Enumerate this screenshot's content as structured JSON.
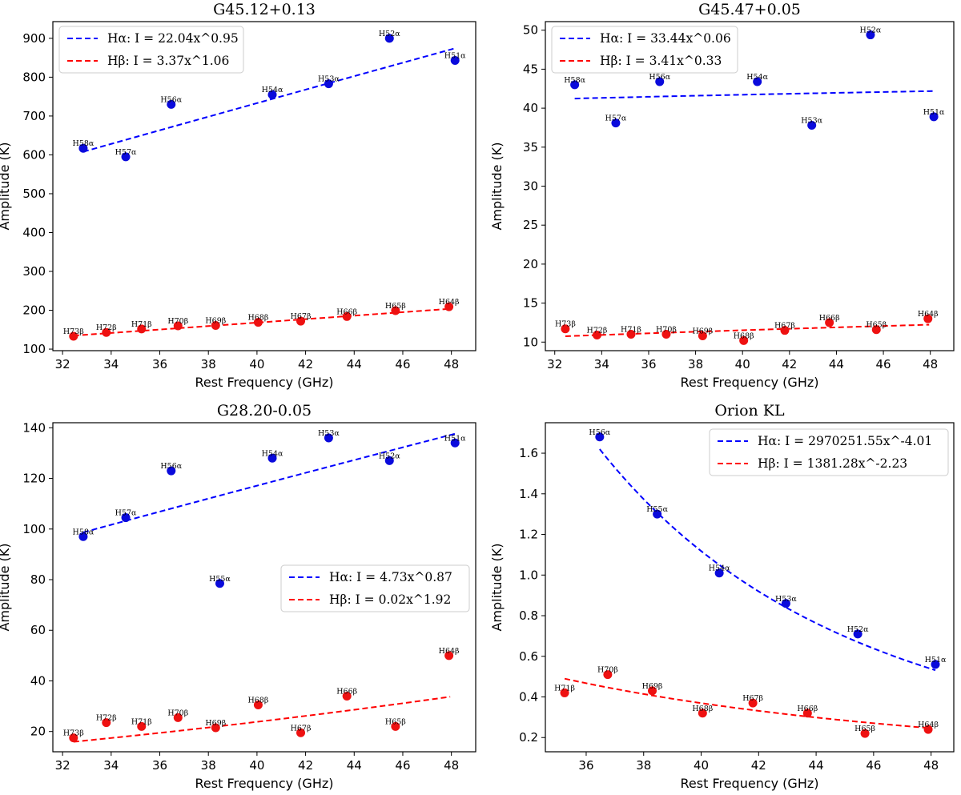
{
  "figure": {
    "x_label": "Rest Frequency (GHz)",
    "y_label": "Amplitude (K)"
  },
  "colors": {
    "alpha": "#0000ff",
    "beta": "#ff0000",
    "alpha_marker": "#0a0adc",
    "beta_marker": "#ee1111"
  },
  "chart_data": [
    {
      "type": "scatter",
      "title": "G45.12+0.13",
      "xlabel": "Rest Frequency (GHz)",
      "ylabel": "Amplitude (K)",
      "xlim": [
        31.6,
        49.0
      ],
      "ylim": [
        96,
        943
      ],
      "xticks": [
        32,
        34,
        36,
        38,
        40,
        42,
        44,
        46,
        48
      ],
      "yticks": [
        100,
        200,
        300,
        400,
        500,
        600,
        700,
        800,
        900
      ],
      "legend_position": "top-left",
      "series": [
        {
          "name": "Hα",
          "fit_label": "Hα: I = 22.04x^0.95",
          "fit": {
            "a": 22.04,
            "b": 0.95,
            "x_range": [
              32.85,
              48.15
            ]
          },
          "points": [
            {
              "label": "H58α",
              "x": 32.85,
              "y": 617
            },
            {
              "label": "H57α",
              "x": 34.6,
              "y": 595
            },
            {
              "label": "H56α",
              "x": 36.47,
              "y": 730
            },
            {
              "label": "H54α",
              "x": 40.63,
              "y": 755
            },
            {
              "label": "H53α",
              "x": 42.95,
              "y": 783
            },
            {
              "label": "H52α",
              "x": 45.45,
              "y": 900
            },
            {
              "label": "H51α",
              "x": 48.15,
              "y": 843
            }
          ]
        },
        {
          "name": "Hβ",
          "fit_label": "Hβ: I = 3.37x^1.06",
          "fit": {
            "a": 3.37,
            "b": 1.06,
            "x_range": [
              32.45,
              47.95
            ]
          },
          "points": [
            {
              "label": "H73β",
              "x": 32.45,
              "y": 133
            },
            {
              "label": "H72β",
              "x": 33.8,
              "y": 143
            },
            {
              "label": "H71β",
              "x": 35.25,
              "y": 152
            },
            {
              "label": "H70β",
              "x": 36.75,
              "y": 160
            },
            {
              "label": "H69β",
              "x": 38.3,
              "y": 161
            },
            {
              "label": "H68β",
              "x": 40.05,
              "y": 169
            },
            {
              "label": "H67β",
              "x": 41.8,
              "y": 172
            },
            {
              "label": "H66β",
              "x": 43.7,
              "y": 184
            },
            {
              "label": "H65β",
              "x": 45.7,
              "y": 199
            },
            {
              "label": "H64β",
              "x": 47.9,
              "y": 209
            }
          ]
        }
      ]
    },
    {
      "type": "scatter",
      "title": "G45.47+0.05",
      "xlabel": "Rest Frequency (GHz)",
      "ylabel": "Amplitude (K)",
      "xlim": [
        31.6,
        49.0
      ],
      "ylim": [
        8.9,
        51.1
      ],
      "xticks": [
        32,
        34,
        36,
        38,
        40,
        42,
        44,
        46,
        48
      ],
      "yticks": [
        10,
        15,
        20,
        25,
        30,
        35,
        40,
        45,
        50
      ],
      "legend_position": "top-left",
      "series": [
        {
          "name": "Hα",
          "fit_label": "Hα: I = 33.44x^0.06",
          "fit": {
            "a": 33.44,
            "b": 0.06,
            "x_range": [
              32.85,
              48.15
            ]
          },
          "points": [
            {
              "label": "H58α",
              "x": 32.85,
              "y": 43.0
            },
            {
              "label": "H57α",
              "x": 34.6,
              "y": 38.1
            },
            {
              "label": "H56α",
              "x": 36.47,
              "y": 43.4
            },
            {
              "label": "H54α",
              "x": 40.63,
              "y": 43.4
            },
            {
              "label": "H53α",
              "x": 42.95,
              "y": 37.8
            },
            {
              "label": "H52α",
              "x": 45.45,
              "y": 49.4
            },
            {
              "label": "H51α",
              "x": 48.15,
              "y": 38.9
            }
          ]
        },
        {
          "name": "Hβ",
          "fit_label": "Hβ: I = 3.41x^0.33",
          "fit": {
            "a": 3.41,
            "b": 0.33,
            "x_range": [
              32.45,
              47.95
            ]
          },
          "points": [
            {
              "label": "H73β",
              "x": 32.45,
              "y": 11.7
            },
            {
              "label": "H72β",
              "x": 33.8,
              "y": 10.9
            },
            {
              "label": "H71β",
              "x": 35.25,
              "y": 11.0
            },
            {
              "label": "H70β",
              "x": 36.75,
              "y": 11.0
            },
            {
              "label": "H69β",
              "x": 38.3,
              "y": 10.8
            },
            {
              "label": "H68β",
              "x": 40.05,
              "y": 10.2
            },
            {
              "label": "H67β",
              "x": 41.8,
              "y": 11.5
            },
            {
              "label": "H66β",
              "x": 43.7,
              "y": 12.5
            },
            {
              "label": "H65β",
              "x": 45.7,
              "y": 11.6
            },
            {
              "label": "H64β",
              "x": 47.9,
              "y": 13.0
            }
          ]
        }
      ]
    },
    {
      "type": "scatter",
      "title": "G28.20-0.05",
      "xlabel": "Rest Frequency (GHz)",
      "ylabel": "Amplitude (K)",
      "xlim": [
        31.6,
        49.0
      ],
      "ylim": [
        12.0,
        142.0
      ],
      "xticks": [
        32,
        34,
        36,
        38,
        40,
        42,
        44,
        46,
        48
      ],
      "yticks": [
        20,
        40,
        60,
        80,
        100,
        120,
        140
      ],
      "legend_position": "center-right",
      "series": [
        {
          "name": "Hα",
          "fit_label": "Hα: I = 4.73x^0.87",
          "fit": {
            "a": 4.73,
            "b": 0.87,
            "x_range": [
              32.85,
              48.15
            ]
          },
          "points": [
            {
              "label": "H58α",
              "x": 32.85,
              "y": 97
            },
            {
              "label": "H57α",
              "x": 34.6,
              "y": 104.5
            },
            {
              "label": "H56α",
              "x": 36.47,
              "y": 123
            },
            {
              "label": "H55α",
              "x": 38.47,
              "y": 78.5
            },
            {
              "label": "H54α",
              "x": 40.63,
              "y": 128
            },
            {
              "label": "H53α",
              "x": 42.95,
              "y": 136
            },
            {
              "label": "H52α",
              "x": 45.45,
              "y": 127
            },
            {
              "label": "H51α",
              "x": 48.15,
              "y": 134
            }
          ]
        },
        {
          "name": "Hβ",
          "fit_label": "Hβ: I = 0.02x^1.92",
          "fit": {
            "a": 0.02,
            "b": 1.92,
            "x_range": [
              32.45,
              47.95
            ]
          },
          "points": [
            {
              "label": "H73β",
              "x": 32.45,
              "y": 17.5
            },
            {
              "label": "H72β",
              "x": 33.8,
              "y": 23.5
            },
            {
              "label": "H71β",
              "x": 35.25,
              "y": 22.0
            },
            {
              "label": "H70β",
              "x": 36.75,
              "y": 25.5
            },
            {
              "label": "H69β",
              "x": 38.3,
              "y": 21.5
            },
            {
              "label": "H68β",
              "x": 40.05,
              "y": 30.5
            },
            {
              "label": "H67β",
              "x": 41.8,
              "y": 19.5
            },
            {
              "label": "H66β",
              "x": 43.7,
              "y": 34.0
            },
            {
              "label": "H65β",
              "x": 45.7,
              "y": 22.0
            },
            {
              "label": "H64β",
              "x": 47.9,
              "y": 50.0
            }
          ]
        }
      ]
    },
    {
      "type": "scatter",
      "title": "Orion KL",
      "xlabel": "Rest Frequency (GHz)",
      "ylabel": "Amplitude (K)",
      "xlim": [
        34.58,
        48.79
      ],
      "ylim": [
        0.13,
        1.75
      ],
      "xticks": [
        36,
        38,
        40,
        42,
        44,
        46,
        48
      ],
      "yticks": [
        0.2,
        0.4,
        0.6,
        0.8,
        1.0,
        1.2,
        1.4,
        1.6
      ],
      "legend_position": "top-right",
      "series": [
        {
          "name": "Hα",
          "fit_label": "Hα: I = 2970251.55x^-4.01",
          "fit": {
            "a": 2970251.55,
            "b": -4.01,
            "x_range": [
              36.47,
              48.15
            ]
          },
          "points": [
            {
              "label": "H56α",
              "x": 36.47,
              "y": 1.68
            },
            {
              "label": "H55α",
              "x": 38.47,
              "y": 1.3
            },
            {
              "label": "H54α",
              "x": 40.63,
              "y": 1.01
            },
            {
              "label": "H53α",
              "x": 42.95,
              "y": 0.86
            },
            {
              "label": "H52α",
              "x": 45.45,
              "y": 0.71
            },
            {
              "label": "H51α",
              "x": 48.15,
              "y": 0.56
            }
          ]
        },
        {
          "name": "Hβ",
          "fit_label": "Hβ: I = 1381.28x^-2.23",
          "fit": {
            "a": 1381.28,
            "b": -2.23,
            "x_range": [
              35.25,
              47.95
            ]
          },
          "points": [
            {
              "label": "H71β",
              "x": 35.25,
              "y": 0.42
            },
            {
              "label": "H70β",
              "x": 36.75,
              "y": 0.51
            },
            {
              "label": "H69β",
              "x": 38.3,
              "y": 0.43
            },
            {
              "label": "H68β",
              "x": 40.05,
              "y": 0.32
            },
            {
              "label": "H67β",
              "x": 41.8,
              "y": 0.37
            },
            {
              "label": "H66β",
              "x": 43.7,
              "y": 0.32
            },
            {
              "label": "H65β",
              "x": 45.7,
              "y": 0.22
            },
            {
              "label": "H64β",
              "x": 47.9,
              "y": 0.24
            }
          ]
        }
      ]
    }
  ]
}
